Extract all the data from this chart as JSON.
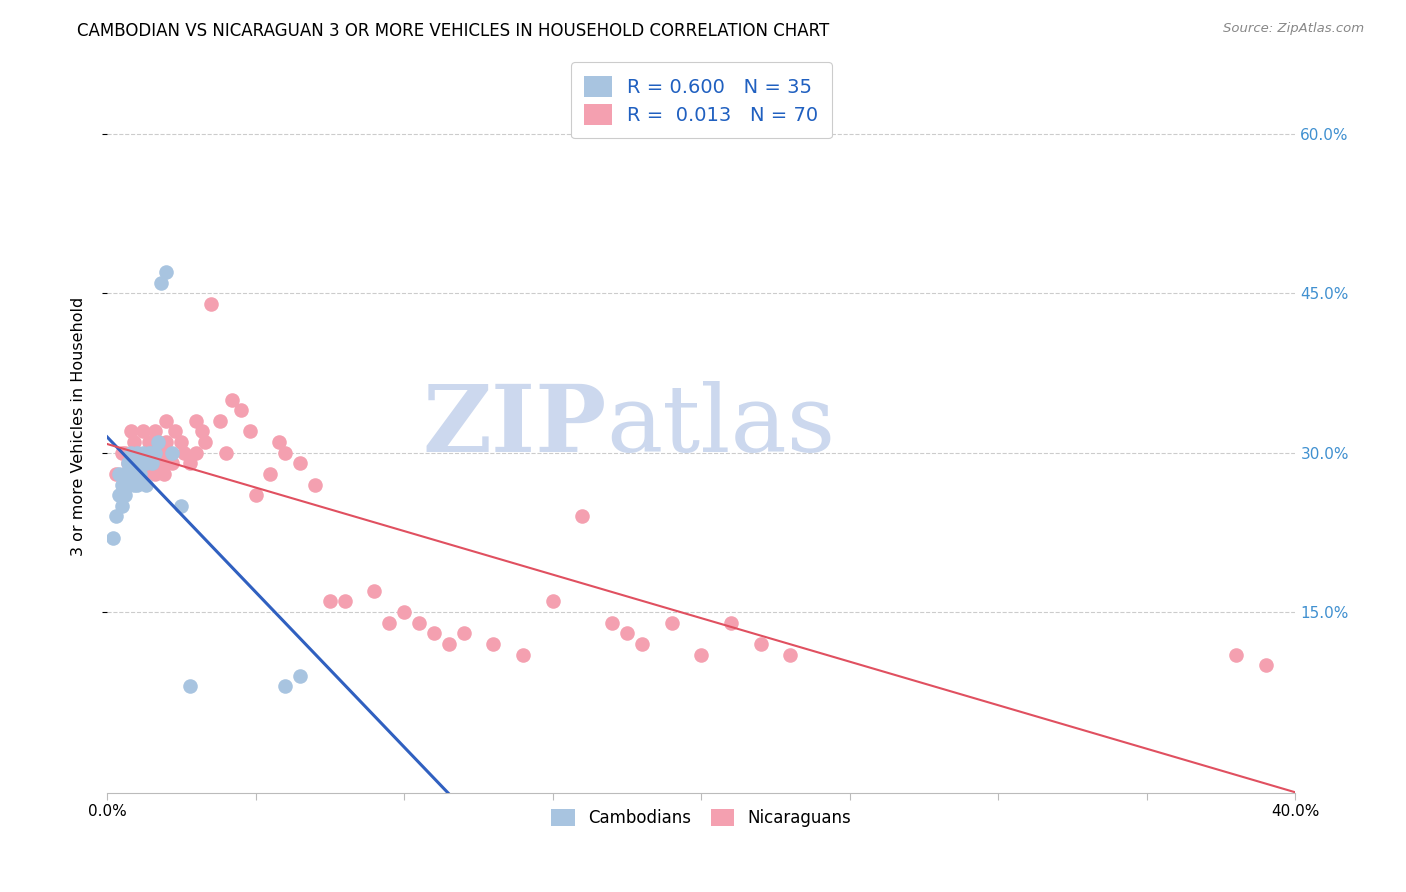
{
  "title": "CAMBODIAN VS NICARAGUAN 3 OR MORE VEHICLES IN HOUSEHOLD CORRELATION CHART",
  "source": "Source: ZipAtlas.com",
  "ylabel": "3 or more Vehicles in Household",
  "xlim": [
    0.0,
    0.4
  ],
  "ylim": [
    -0.02,
    0.67
  ],
  "yticks": [
    0.15,
    0.3,
    0.45,
    0.6
  ],
  "ytick_labels": [
    "15.0%",
    "30.0%",
    "45.0%",
    "60.0%"
  ],
  "xtick_positions": [
    0.0,
    0.05,
    0.1,
    0.15,
    0.2,
    0.25,
    0.3,
    0.35,
    0.4
  ],
  "cambodian_R": 0.6,
  "cambodian_N": 35,
  "nicaraguan_R": 0.013,
  "nicaraguan_N": 70,
  "cambodian_color": "#a8c4e0",
  "nicaraguan_color": "#f4a0b0",
  "cambodian_line_color": "#3060c0",
  "nicaraguan_line_color": "#e05060",
  "watermark_zip": "ZIP",
  "watermark_atlas": "atlas",
  "watermark_color": "#ccd8ee",
  "legend_R_color": "#2060c0",
  "legend_N_color": "#2060c0",
  "cambodian_x": [
    0.002,
    0.003,
    0.004,
    0.004,
    0.005,
    0.005,
    0.006,
    0.006,
    0.007,
    0.007,
    0.008,
    0.008,
    0.009,
    0.009,
    0.01,
    0.01,
    0.01,
    0.011,
    0.011,
    0.012,
    0.012,
    0.013,
    0.013,
    0.014,
    0.015,
    0.015,
    0.016,
    0.017,
    0.018,
    0.02,
    0.022,
    0.025,
    0.028,
    0.06,
    0.065
  ],
  "cambodian_y": [
    0.22,
    0.24,
    0.26,
    0.28,
    0.25,
    0.27,
    0.26,
    0.28,
    0.27,
    0.29,
    0.28,
    0.3,
    0.29,
    0.27,
    0.28,
    0.3,
    0.27,
    0.29,
    0.28,
    0.3,
    0.29,
    0.27,
    0.29,
    0.3,
    0.29,
    0.3,
    0.3,
    0.31,
    0.46,
    0.47,
    0.3,
    0.25,
    0.08,
    0.08,
    0.09
  ],
  "nicaraguan_x": [
    0.003,
    0.005,
    0.006,
    0.007,
    0.008,
    0.008,
    0.009,
    0.01,
    0.01,
    0.011,
    0.012,
    0.012,
    0.013,
    0.013,
    0.014,
    0.015,
    0.015,
    0.016,
    0.016,
    0.017,
    0.018,
    0.018,
    0.019,
    0.02,
    0.02,
    0.021,
    0.022,
    0.023,
    0.025,
    0.026,
    0.028,
    0.03,
    0.03,
    0.032,
    0.033,
    0.035,
    0.038,
    0.04,
    0.042,
    0.045,
    0.048,
    0.05,
    0.055,
    0.058,
    0.06,
    0.065,
    0.07,
    0.075,
    0.08,
    0.09,
    0.095,
    0.1,
    0.105,
    0.11,
    0.115,
    0.12,
    0.13,
    0.14,
    0.15,
    0.16,
    0.17,
    0.175,
    0.18,
    0.19,
    0.2,
    0.21,
    0.22,
    0.23,
    0.38,
    0.39
  ],
  "nicaraguan_y": [
    0.28,
    0.3,
    0.3,
    0.29,
    0.32,
    0.28,
    0.31,
    0.3,
    0.29,
    0.28,
    0.32,
    0.29,
    0.3,
    0.28,
    0.31,
    0.3,
    0.29,
    0.32,
    0.28,
    0.31,
    0.3,
    0.29,
    0.28,
    0.33,
    0.31,
    0.3,
    0.29,
    0.32,
    0.31,
    0.3,
    0.29,
    0.33,
    0.3,
    0.32,
    0.31,
    0.44,
    0.33,
    0.3,
    0.35,
    0.34,
    0.32,
    0.26,
    0.28,
    0.31,
    0.3,
    0.29,
    0.27,
    0.16,
    0.16,
    0.17,
    0.14,
    0.15,
    0.14,
    0.13,
    0.12,
    0.13,
    0.12,
    0.11,
    0.16,
    0.24,
    0.14,
    0.13,
    0.12,
    0.14,
    0.11,
    0.14,
    0.12,
    0.11,
    0.11,
    0.1
  ]
}
